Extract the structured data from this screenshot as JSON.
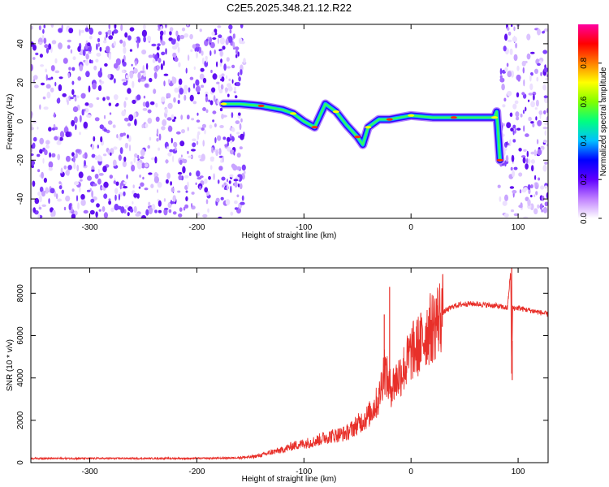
{
  "title": "C2E5.2025.348.21.12.R22",
  "chart_data": [
    {
      "type": "heatmap",
      "xlabel": "Height of straight line (km)",
      "ylabel": "Frequency (Hz)",
      "xlim": [
        -355,
        128
      ],
      "ylim": [
        -50,
        50
      ],
      "xticks": [
        -300,
        -200,
        -100,
        0,
        100
      ],
      "yticks": [
        -40,
        -20,
        0,
        20,
        40
      ],
      "colorbar": {
        "label": "Normalized spectral amplitude",
        "range": [
          0,
          1
        ],
        "ticks": [
          "0.0",
          "0.2",
          "0.4",
          "0.6",
          "0.8"
        ],
        "colors": [
          "#ffffff",
          "#c080ff",
          "#6000ff",
          "#0000ff",
          "#00c0ff",
          "#00ff80",
          "#80ff00",
          "#ffff00",
          "#ff8000",
          "#ff0000",
          "#ff00a0"
        ]
      },
      "noise_regions_km": [
        [
          -355,
          -155
        ],
        [
          82,
          128
        ]
      ],
      "signal_trace": [
        {
          "x": -175,
          "y": 9
        },
        {
          "x": -160,
          "y": 9
        },
        {
          "x": -140,
          "y": 8
        },
        {
          "x": -120,
          "y": 6
        },
        {
          "x": -110,
          "y": 4
        },
        {
          "x": -100,
          "y": 0
        },
        {
          "x": -90,
          "y": -3
        },
        {
          "x": -80,
          "y": 9
        },
        {
          "x": -70,
          "y": 5
        },
        {
          "x": -60,
          "y": -2
        },
        {
          "x": -50,
          "y": -8
        },
        {
          "x": -45,
          "y": -12
        },
        {
          "x": -40,
          "y": -3
        },
        {
          "x": -30,
          "y": 1
        },
        {
          "x": -20,
          "y": 1
        },
        {
          "x": -10,
          "y": 2
        },
        {
          "x": 0,
          "y": 3
        },
        {
          "x": 20,
          "y": 2
        },
        {
          "x": 40,
          "y": 2
        },
        {
          "x": 60,
          "y": 2
        },
        {
          "x": 78,
          "y": 2
        },
        {
          "x": 80,
          "y": 5
        },
        {
          "x": 83,
          "y": -20
        }
      ]
    },
    {
      "type": "line",
      "xlabel": "Height of straight line (km)",
      "ylabel": "SNR (10 * v/v)",
      "xlim": [
        -355,
        128
      ],
      "ylim": [
        0,
        9200
      ],
      "xticks": [
        -300,
        -200,
        -100,
        0,
        100
      ],
      "yticks": [
        0,
        2000,
        4000,
        6000,
        8000
      ],
      "series": [
        {
          "color": "#e8302a",
          "x": [
            -355,
            -300,
            -250,
            -200,
            -170,
            -150,
            -140,
            -130,
            -120,
            -110,
            -100,
            -90,
            -80,
            -70,
            -60,
            -50,
            -40,
            -30,
            -25,
            -20,
            -15,
            -10,
            -5,
            0,
            5,
            10,
            15,
            20,
            25,
            30,
            40,
            50,
            60,
            70,
            80,
            90,
            93,
            94,
            95,
            100,
            110,
            120,
            128
          ],
          "y": [
            200,
            200,
            200,
            200,
            220,
            260,
            350,
            500,
            600,
            800,
            900,
            1000,
            1200,
            1300,
            1400,
            1800,
            2200,
            3000,
            4500,
            3500,
            3800,
            4200,
            4600,
            5200,
            5400,
            5700,
            6200,
            6400,
            6800,
            7100,
            7400,
            7500,
            7500,
            7450,
            7400,
            7300,
            9000,
            4200,
            7300,
            7300,
            7200,
            7100,
            7000
          ]
        }
      ],
      "spikes": [
        {
          "x": -20,
          "y": 8300
        },
        {
          "x": -25,
          "y": 7000
        },
        {
          "x": 94,
          "y": 9200
        },
        {
          "x": 94.5,
          "y": 3900
        }
      ]
    }
  ]
}
